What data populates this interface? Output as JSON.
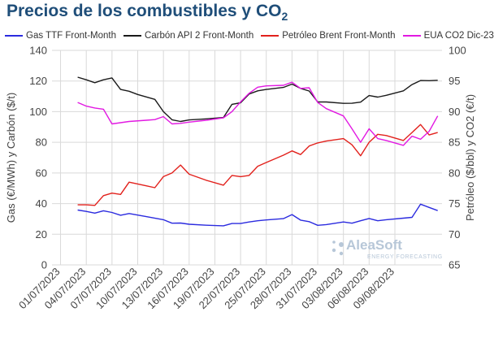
{
  "chart_data": {
    "type": "line",
    "title_main": "Precios de los combustibles y CO",
    "title_sub": "2",
    "y_left_label": "Gas (€/MWh) y Carbón ($/t)",
    "y_right_label": "Petróleo ($/bbl) y CO2 (€/t)",
    "y_left_range": [
      0,
      140
    ],
    "y_left_ticks": [
      "0",
      "20",
      "40",
      "60",
      "80",
      "100",
      "120",
      "140"
    ],
    "y_right_range": [
      65,
      100
    ],
    "y_right_ticks": [
      "65",
      "70",
      "75",
      "80",
      "85",
      "90",
      "95",
      "100"
    ],
    "grid": true,
    "legend_position": "top",
    "x_tick_labels": [
      "01/07/2023",
      "04/07/2023",
      "07/07/2023",
      "10/07/2023",
      "13/07/2023",
      "16/07/2023",
      "19/07/2023",
      "22/07/2023",
      "25/07/2023",
      "28/07/2023",
      "31/07/2023",
      "03/08/2023",
      "06/08/2023",
      "09/08/2023"
    ],
    "series": [
      {
        "name": "Gas TTF Front-Month",
        "axis": "left",
        "color": "#2b2bdf",
        "points": [
          [
            "2023-07-03",
            35.8
          ],
          [
            "2023-07-04",
            34.9
          ],
          [
            "2023-07-05",
            33.8
          ],
          [
            "2023-07-06",
            35.3
          ],
          [
            "2023-07-07",
            34.2
          ],
          [
            "2023-07-08",
            32.4
          ],
          [
            "2023-07-09",
            33.5
          ],
          [
            "2023-07-11",
            31.5
          ],
          [
            "2023-07-13",
            29.5
          ],
          [
            "2023-07-14",
            27.2
          ],
          [
            "2023-07-15",
            27.3
          ],
          [
            "2023-07-16",
            26.5
          ],
          [
            "2023-07-18",
            25.9
          ],
          [
            "2023-07-20",
            25.5
          ],
          [
            "2023-07-21",
            27.0
          ],
          [
            "2023-07-22",
            27.0
          ],
          [
            "2023-07-23",
            28.0
          ],
          [
            "2023-07-24",
            28.8
          ],
          [
            "2023-07-25",
            29.3
          ],
          [
            "2023-07-27",
            30.2
          ],
          [
            "2023-07-28",
            32.8
          ],
          [
            "2023-07-29",
            29.2
          ],
          [
            "2023-07-30",
            28.2
          ],
          [
            "2023-07-31",
            25.8
          ],
          [
            "2023-08-01",
            26.3
          ],
          [
            "2023-08-03",
            28.0
          ],
          [
            "2023-08-04",
            27.2
          ],
          [
            "2023-08-05",
            28.8
          ],
          [
            "2023-08-06",
            30.3
          ],
          [
            "2023-08-07",
            28.8
          ],
          [
            "2023-08-08",
            29.5
          ],
          [
            "2023-08-10",
            30.5
          ],
          [
            "2023-08-11",
            31.0
          ],
          [
            "2023-08-12",
            39.6
          ],
          [
            "2023-08-13",
            37.5
          ],
          [
            "2023-08-14",
            35.4
          ]
        ]
      },
      {
        "name": "Carbón API 2 Front-Month",
        "axis": "left",
        "color": "#1a1a1a",
        "points": [
          [
            "2023-07-03",
            122.5
          ],
          [
            "2023-07-04",
            120.8
          ],
          [
            "2023-07-05",
            118.9
          ],
          [
            "2023-07-06",
            120.8
          ],
          [
            "2023-07-07",
            122.0
          ],
          [
            "2023-07-08",
            114.5
          ],
          [
            "2023-07-09",
            113.3
          ],
          [
            "2023-07-10",
            111.2
          ],
          [
            "2023-07-12",
            108.0
          ],
          [
            "2023-07-13",
            100.0
          ],
          [
            "2023-07-14",
            94.7
          ],
          [
            "2023-07-15",
            93.6
          ],
          [
            "2023-07-16",
            94.6
          ],
          [
            "2023-07-18",
            95.3
          ],
          [
            "2023-07-20",
            96.2
          ],
          [
            "2023-07-21",
            104.8
          ],
          [
            "2023-07-22",
            105.8
          ],
          [
            "2023-07-23",
            111.5
          ],
          [
            "2023-07-24",
            113.6
          ],
          [
            "2023-07-25",
            114.5
          ],
          [
            "2023-07-27",
            115.8
          ],
          [
            "2023-07-28",
            118.0
          ],
          [
            "2023-07-29",
            115.2
          ],
          [
            "2023-07-30",
            113.5
          ],
          [
            "2023-07-31",
            106.3
          ],
          [
            "2023-08-01",
            106.3
          ],
          [
            "2023-08-03",
            105.4
          ],
          [
            "2023-08-04",
            105.5
          ],
          [
            "2023-08-05",
            106.2
          ],
          [
            "2023-08-06",
            110.5
          ],
          [
            "2023-08-07",
            109.5
          ],
          [
            "2023-08-08",
            110.7
          ],
          [
            "2023-08-10",
            113.6
          ],
          [
            "2023-08-11",
            117.7
          ],
          [
            "2023-08-12",
            120.3
          ],
          [
            "2023-08-13",
            120.2
          ],
          [
            "2023-08-14",
            120.5
          ]
        ]
      },
      {
        "name": "Petróleo Brent Front-Month",
        "axis": "right",
        "color": "#e2211c",
        "points": [
          [
            "2023-07-03",
            74.8
          ],
          [
            "2023-07-04",
            74.8
          ],
          [
            "2023-07-05",
            74.7
          ],
          [
            "2023-07-06",
            76.3
          ],
          [
            "2023-07-07",
            76.7
          ],
          [
            "2023-07-08",
            76.5
          ],
          [
            "2023-07-09",
            78.5
          ],
          [
            "2023-07-11",
            77.9
          ],
          [
            "2023-07-12",
            77.6
          ],
          [
            "2023-07-13",
            79.4
          ],
          [
            "2023-07-14",
            80.0
          ],
          [
            "2023-07-15",
            81.3
          ],
          [
            "2023-07-16",
            79.8
          ],
          [
            "2023-07-18",
            78.8
          ],
          [
            "2023-07-20",
            78.0
          ],
          [
            "2023-07-21",
            79.6
          ],
          [
            "2023-07-22",
            79.4
          ],
          [
            "2023-07-23",
            79.6
          ],
          [
            "2023-07-24",
            81.1
          ],
          [
            "2023-07-25",
            81.7
          ],
          [
            "2023-07-27",
            82.9
          ],
          [
            "2023-07-28",
            83.6
          ],
          [
            "2023-07-29",
            83.0
          ],
          [
            "2023-07-30",
            84.4
          ],
          [
            "2023-07-31",
            84.9
          ],
          [
            "2023-08-01",
            85.2
          ],
          [
            "2023-08-03",
            85.6
          ],
          [
            "2023-08-04",
            84.6
          ],
          [
            "2023-08-05",
            82.8
          ],
          [
            "2023-08-06",
            85.0
          ],
          [
            "2023-08-07",
            86.3
          ],
          [
            "2023-08-08",
            86.1
          ],
          [
            "2023-08-10",
            85.3
          ],
          [
            "2023-08-11",
            86.6
          ],
          [
            "2023-08-12",
            87.9
          ],
          [
            "2023-08-13",
            86.2
          ],
          [
            "2023-08-14",
            86.6
          ]
        ]
      },
      {
        "name": "EUA CO2 Dic-23",
        "axis": "right",
        "color": "#e219e2",
        "points": [
          [
            "2023-07-03",
            91.5
          ],
          [
            "2023-07-04",
            90.9
          ],
          [
            "2023-07-05",
            90.6
          ],
          [
            "2023-07-06",
            90.4
          ],
          [
            "2023-07-07",
            88.0
          ],
          [
            "2023-07-08",
            88.2
          ],
          [
            "2023-07-09",
            88.4
          ],
          [
            "2023-07-11",
            88.6
          ],
          [
            "2023-07-12",
            88.7
          ],
          [
            "2023-07-13",
            89.2
          ],
          [
            "2023-07-14",
            88.0
          ],
          [
            "2023-07-15",
            88.1
          ],
          [
            "2023-07-16",
            88.3
          ],
          [
            "2023-07-18",
            88.6
          ],
          [
            "2023-07-20",
            89.0
          ],
          [
            "2023-07-21",
            90.0
          ],
          [
            "2023-07-22",
            91.6
          ],
          [
            "2023-07-23",
            93.0
          ],
          [
            "2023-07-24",
            94.0
          ],
          [
            "2023-07-25",
            94.2
          ],
          [
            "2023-07-27",
            94.3
          ],
          [
            "2023-07-28",
            94.8
          ],
          [
            "2023-07-29",
            93.8
          ],
          [
            "2023-07-30",
            93.9
          ],
          [
            "2023-07-31",
            91.5
          ],
          [
            "2023-08-01",
            90.5
          ],
          [
            "2023-08-03",
            89.3
          ],
          [
            "2023-08-04",
            87.2
          ],
          [
            "2023-08-05",
            85.0
          ],
          [
            "2023-08-06",
            87.2
          ],
          [
            "2023-08-07",
            85.6
          ],
          [
            "2023-08-08",
            85.3
          ],
          [
            "2023-08-10",
            84.5
          ],
          [
            "2023-08-11",
            86.0
          ],
          [
            "2023-08-12",
            85.5
          ],
          [
            "2023-08-13",
            86.8
          ],
          [
            "2023-08-14",
            89.3
          ]
        ]
      }
    ]
  },
  "watermark": {
    "name": "AleaSoft",
    "tagline": "ENERGY FORECASTING"
  },
  "colors": {
    "title": "#1f4e79",
    "grid": "#d9d9d9",
    "watermark": "#b7c7d8"
  }
}
